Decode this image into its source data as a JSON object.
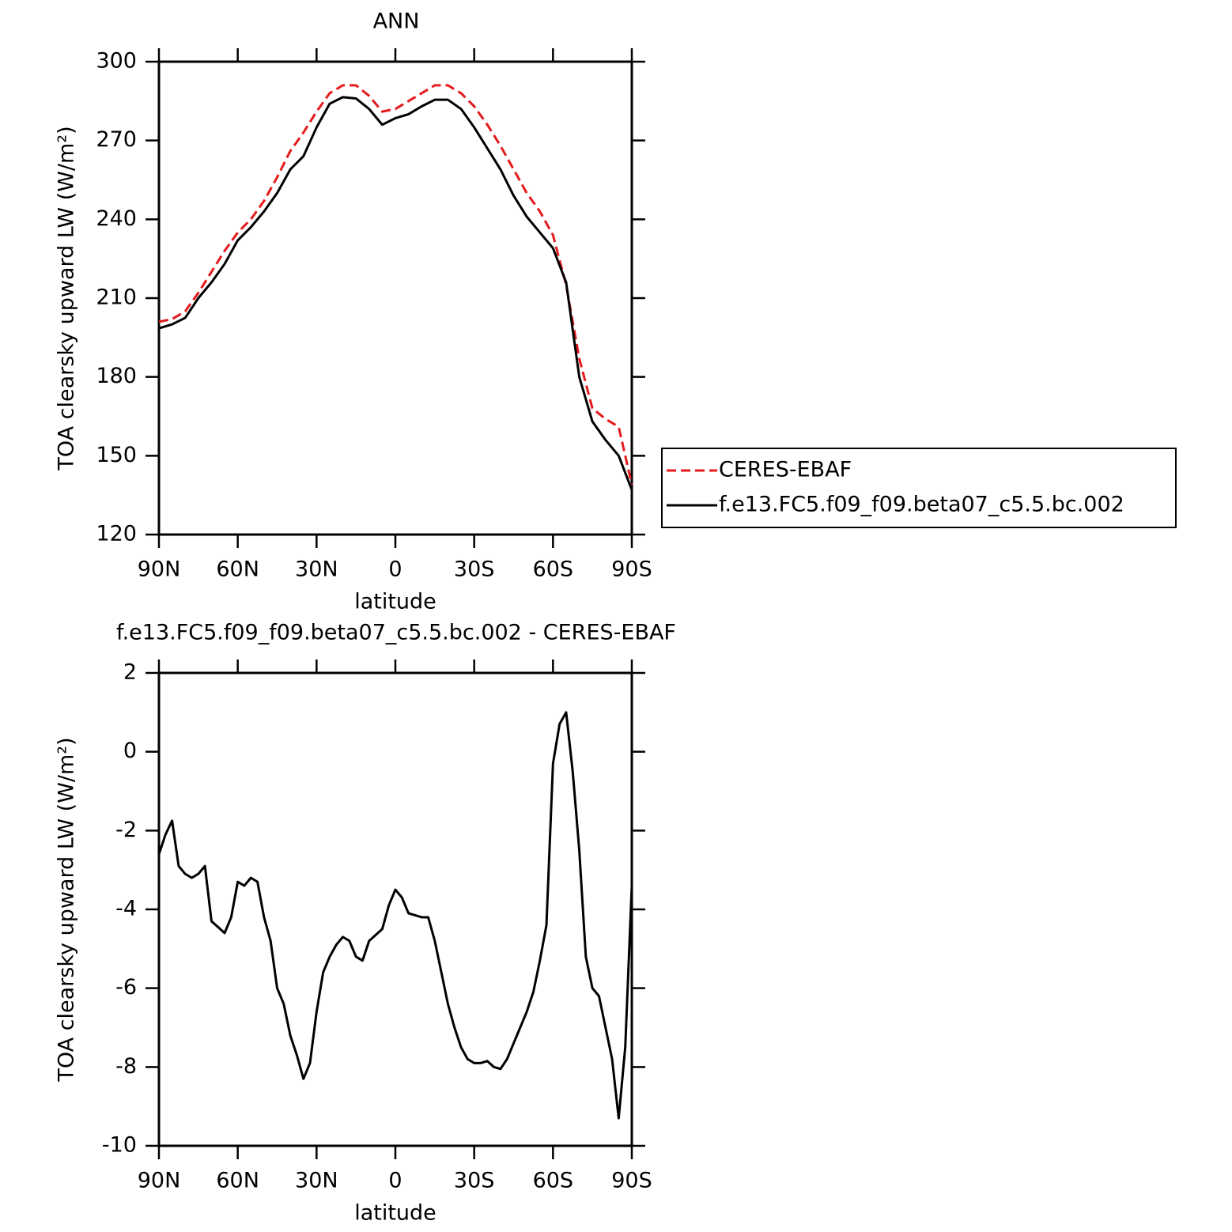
{
  "chart_data": [
    {
      "type": "line",
      "title": "ANN",
      "xlabel": "latitude",
      "ylabel": "TOA clearsky upward LW (W/m²)",
      "x": [
        90,
        85,
        80,
        75,
        70,
        65,
        60,
        55,
        50,
        45,
        40,
        35,
        30,
        25,
        20,
        15,
        10,
        5,
        0,
        -5,
        -10,
        -15,
        -20,
        -25,
        -30,
        -35,
        -40,
        -45,
        -50,
        -55,
        -60,
        -65,
        -70,
        -75,
        -80,
        -85,
        -90
      ],
      "series": [
        {
          "name": "CERES-EBAF",
          "color": "#e41a1c",
          "line_style": "dashed",
          "values": [
            201,
            202,
            205,
            212,
            220,
            228,
            235,
            240,
            247,
            256,
            266,
            273,
            281,
            288,
            291,
            291,
            287,
            281,
            282,
            285,
            288,
            291,
            291,
            288,
            283,
            276,
            268,
            259,
            250,
            243,
            234,
            215,
            187,
            168,
            164,
            161,
            139
          ]
        },
        {
          "name": "f.e13.FC5.f09_f09.beta07_c5.5.bc.002",
          "color": "#000000",
          "line_style": "solid",
          "values": [
            198.5,
            200,
            202.5,
            210,
            216,
            223,
            232,
            237,
            243,
            250,
            259,
            264,
            275,
            284,
            286.5,
            286,
            282,
            276,
            278.5,
            280,
            283,
            285.5,
            285.5,
            282,
            275,
            267,
            259,
            249,
            241,
            235,
            229,
            216,
            180,
            163,
            156,
            150,
            137
          ]
        }
      ],
      "xlim": [
        90,
        -90
      ],
      "xticks": [
        {
          "value": 90,
          "label": "90N"
        },
        {
          "value": 60,
          "label": "60N"
        },
        {
          "value": 30,
          "label": "30N"
        },
        0,
        {
          "value": -30,
          "label": "30S"
        },
        {
          "value": -60,
          "label": "60S"
        },
        {
          "value": -90,
          "label": "90S"
        }
      ],
      "ylim": [
        120,
        300
      ],
      "yticks": [
        120,
        150,
        180,
        210,
        240,
        270,
        300
      ],
      "legend": "right"
    },
    {
      "type": "line",
      "title": "f.e13.FC5.f09_f09.beta07_c5.5.bc.002 - CERES-EBAF",
      "xlabel": "latitude",
      "ylabel": "TOA clearsky upward LW (W/m²)",
      "x": [
        90,
        87.5,
        85,
        82.5,
        80,
        77.5,
        75,
        72.5,
        70,
        67.5,
        65,
        62.5,
        60,
        57.5,
        55,
        52.5,
        50,
        47.5,
        45,
        42.5,
        40,
        37.5,
        35,
        32.5,
        30,
        27.5,
        25,
        22.5,
        20,
        17.5,
        15,
        12.5,
        10,
        7.5,
        5,
        2.5,
        0,
        -2.5,
        -5,
        -7.5,
        -10,
        -12.5,
        -15,
        -17.5,
        -20,
        -22.5,
        -25,
        -27.5,
        -30,
        -32.5,
        -35,
        -37.5,
        -40,
        -42.5,
        -45,
        -47.5,
        -50,
        -52.5,
        -55,
        -57.5,
        -60,
        -62.5,
        -65,
        -67.5,
        -70,
        -72.5,
        -75,
        -77.5,
        -80,
        -82.5,
        -85,
        -87.5,
        -90
      ],
      "series": [
        {
          "color": "#000000",
          "line_style": "solid",
          "values": [
            -2.6,
            -2.1,
            -1.75,
            -2.9,
            -3.1,
            -3.2,
            -3.1,
            -2.9,
            -4.3,
            -4.45,
            -4.6,
            -4.2,
            -3.3,
            -3.4,
            -3.2,
            -3.3,
            -4.2,
            -4.8,
            -6.0,
            -6.4,
            -7.2,
            -7.7,
            -8.3,
            -7.9,
            -6.6,
            -5.6,
            -5.2,
            -4.9,
            -4.7,
            -4.8,
            -5.2,
            -5.3,
            -4.8,
            -4.65,
            -4.5,
            -3.9,
            -3.5,
            -3.7,
            -4.1,
            -4.15,
            -4.2,
            -4.2,
            -4.8,
            -5.6,
            -6.4,
            -7.0,
            -7.5,
            -7.8,
            -7.9,
            -7.9,
            -7.85,
            -8.0,
            -8.05,
            -7.8,
            -7.4,
            -7.0,
            -6.6,
            -6.1,
            -5.3,
            -4.4,
            -0.3,
            0.7,
            1.0,
            -0.5,
            -2.5,
            -5.2,
            -6.0,
            -6.2,
            -7.0,
            -7.8,
            -9.3,
            -7.5,
            -3.4
          ]
        }
      ],
      "xlim": [
        90,
        -90
      ],
      "xticks": [
        {
          "value": 90,
          "label": "90N"
        },
        {
          "value": 60,
          "label": "60N"
        },
        {
          "value": 30,
          "label": "30N"
        },
        0,
        {
          "value": -30,
          "label": "30S"
        },
        {
          "value": -60,
          "label": "60S"
        },
        {
          "value": -90,
          "label": "90S"
        }
      ],
      "ylim": [
        -10,
        2
      ],
      "yticks": [
        -10,
        -8,
        -6,
        -4,
        -2,
        0,
        2
      ]
    }
  ]
}
